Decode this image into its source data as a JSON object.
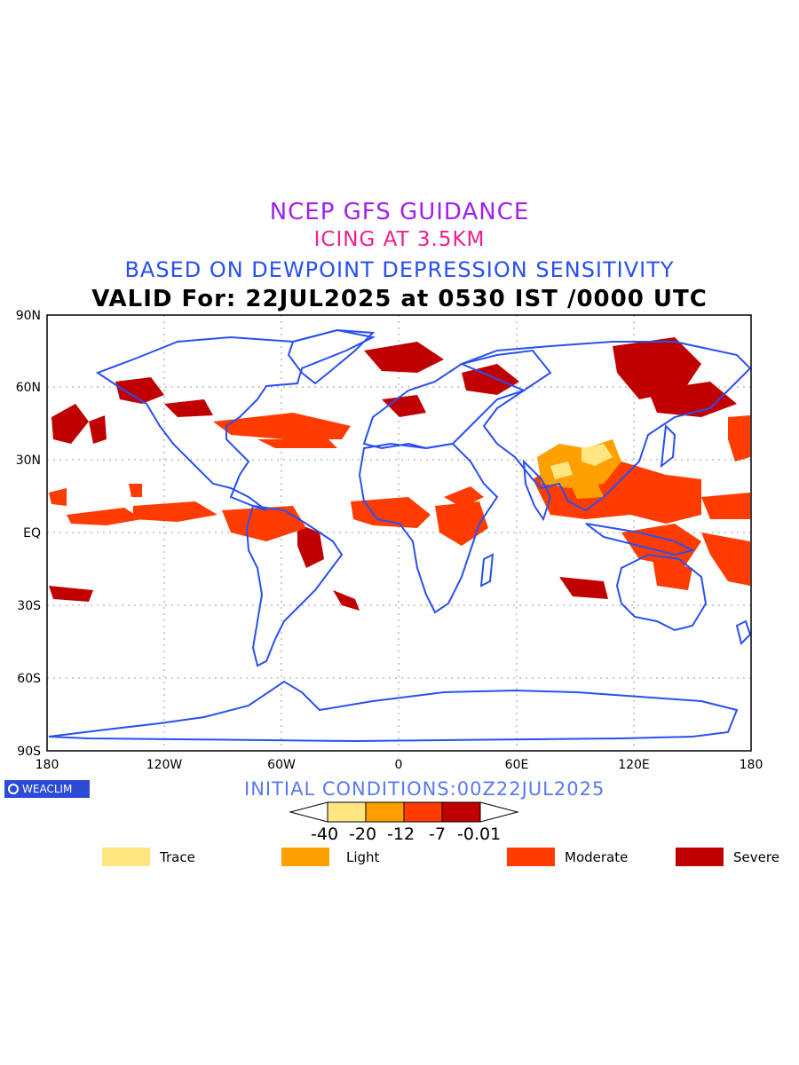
{
  "titles": {
    "line1": "NCEP GFS GUIDANCE",
    "line2": "ICING AT 3.5KM",
    "line3": "BASED ON DEWPOINT DEPRESSION SENSITIVITY",
    "line4": "VALID For: 22JUL2025 at 0530 IST /0000 UTC"
  },
  "axes": {
    "y_labels": [
      "90N",
      "60N",
      "30N",
      "EQ",
      "30S",
      "60S",
      "90S"
    ],
    "x_labels": [
      "180",
      "120W",
      "60W",
      "0",
      "60E",
      "120E",
      "180"
    ]
  },
  "logo": "WEACLIM",
  "initial_conditions": "INITIAL CONDITIONS:00Z22JUL2025",
  "colorbar": {
    "colors": [
      "#ffe680",
      "#ffa000",
      "#ff3c00",
      "#c00000"
    ],
    "ticks": [
      "-40",
      "-20",
      "-12",
      "-7",
      "-0.01"
    ]
  },
  "legend": [
    {
      "label": "Trace",
      "color": "#ffe680"
    },
    {
      "label": "Light",
      "color": "#ffa000"
    },
    {
      "label": "Moderate",
      "color": "#ff3c00"
    },
    {
      "label": "Severe",
      "color": "#c00000"
    }
  ],
  "colors": {
    "coastline": "#2850f0",
    "grid": "#999999"
  }
}
